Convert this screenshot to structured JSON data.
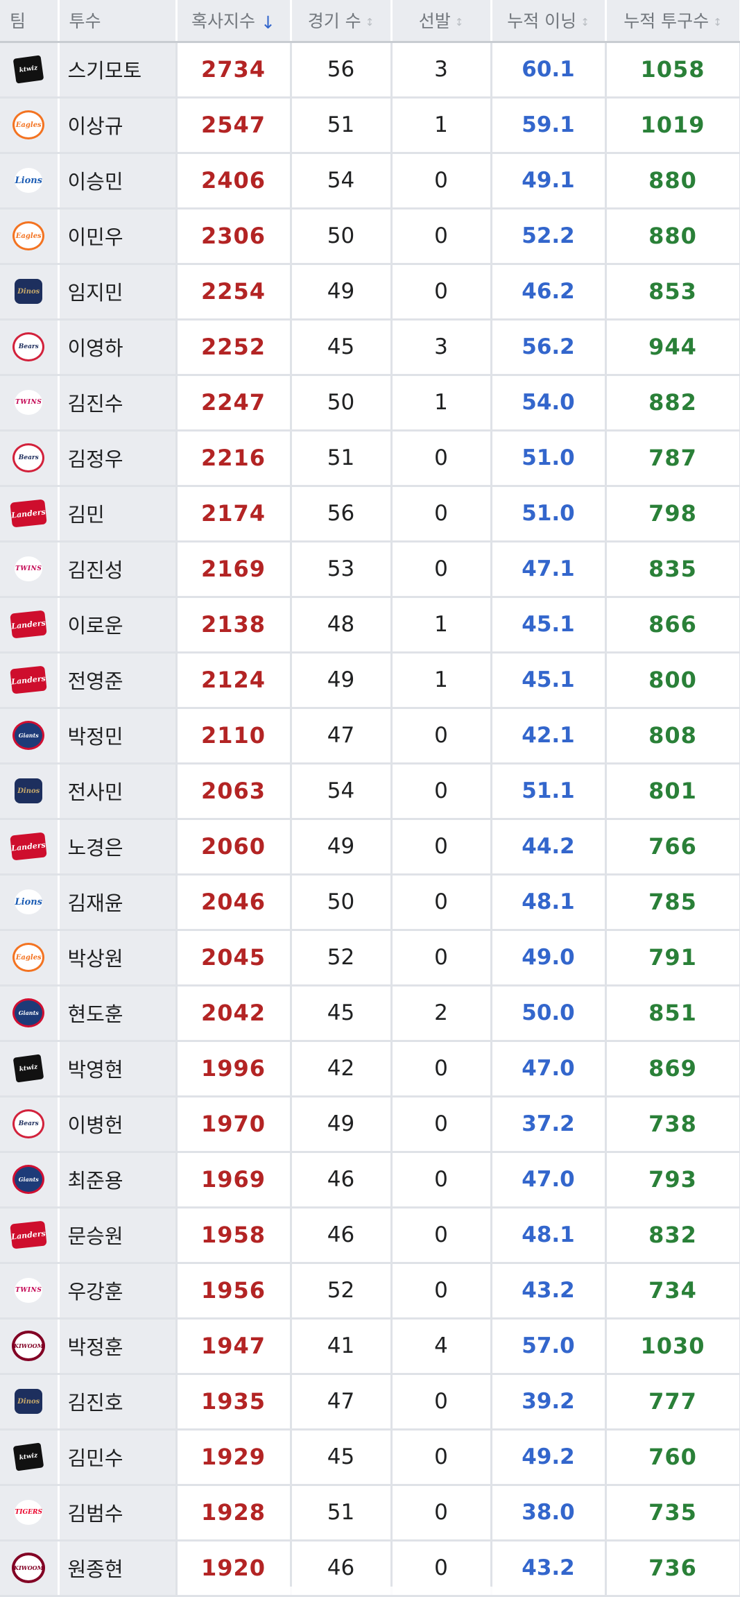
{
  "table": {
    "headers": {
      "team": "팀",
      "pitcher": "투수",
      "wear": "혹사지수",
      "games": "경기 수",
      "starts": "선발",
      "innings": "누적 이닝",
      "pitches": "누적 투구수"
    },
    "sort_icons": {
      "active": "↓",
      "inactive": "↕"
    },
    "rows": [
      {
        "team_logo": "kt-wiz-logo",
        "logo_text": "ktwiz",
        "pitcher": "스기모토",
        "wear": "2734",
        "games": "56",
        "starts": "3",
        "innings": "60.1",
        "pitches": "1058"
      },
      {
        "team_logo": "eagles-logo",
        "logo_text": "Eagles",
        "pitcher": "이상규",
        "wear": "2547",
        "games": "51",
        "starts": "1",
        "innings": "59.1",
        "pitches": "1019"
      },
      {
        "team_logo": "lions-logo",
        "logo_text": "Lions",
        "pitcher": "이승민",
        "wear": "2406",
        "games": "54",
        "starts": "0",
        "innings": "49.1",
        "pitches": "880"
      },
      {
        "team_logo": "eagles-logo",
        "logo_text": "Eagles",
        "pitcher": "이민우",
        "wear": "2306",
        "games": "50",
        "starts": "0",
        "innings": "52.2",
        "pitches": "880"
      },
      {
        "team_logo": "dinos-logo",
        "logo_text": "Dinos",
        "pitcher": "임지민",
        "wear": "2254",
        "games": "49",
        "starts": "0",
        "innings": "46.2",
        "pitches": "853"
      },
      {
        "team_logo": "bears-logo",
        "logo_text": "Bears",
        "pitcher": "이영하",
        "wear": "2252",
        "games": "45",
        "starts": "3",
        "innings": "56.2",
        "pitches": "944"
      },
      {
        "team_logo": "twins-logo",
        "logo_text": "TWINS",
        "pitcher": "김진수",
        "wear": "2247",
        "games": "50",
        "starts": "1",
        "innings": "54.0",
        "pitches": "882"
      },
      {
        "team_logo": "bears-logo",
        "logo_text": "Bears",
        "pitcher": "김정우",
        "wear": "2216",
        "games": "51",
        "starts": "0",
        "innings": "51.0",
        "pitches": "787"
      },
      {
        "team_logo": "landers-logo",
        "logo_text": "Landers",
        "pitcher": "김민",
        "wear": "2174",
        "games": "56",
        "starts": "0",
        "innings": "51.0",
        "pitches": "798"
      },
      {
        "team_logo": "twins-logo",
        "logo_text": "TWINS",
        "pitcher": "김진성",
        "wear": "2169",
        "games": "53",
        "starts": "0",
        "innings": "47.1",
        "pitches": "835"
      },
      {
        "team_logo": "landers-logo",
        "logo_text": "Landers",
        "pitcher": "이로운",
        "wear": "2138",
        "games": "48",
        "starts": "1",
        "innings": "45.1",
        "pitches": "866"
      },
      {
        "team_logo": "landers-logo",
        "logo_text": "Landers",
        "pitcher": "전영준",
        "wear": "2124",
        "games": "49",
        "starts": "1",
        "innings": "45.1",
        "pitches": "800"
      },
      {
        "team_logo": "giants-logo",
        "logo_text": "Giants",
        "pitcher": "박정민",
        "wear": "2110",
        "games": "47",
        "starts": "0",
        "innings": "42.1",
        "pitches": "808"
      },
      {
        "team_logo": "dinos-logo",
        "logo_text": "Dinos",
        "pitcher": "전사민",
        "wear": "2063",
        "games": "54",
        "starts": "0",
        "innings": "51.1",
        "pitches": "801"
      },
      {
        "team_logo": "landers-logo",
        "logo_text": "Landers",
        "pitcher": "노경은",
        "wear": "2060",
        "games": "49",
        "starts": "0",
        "innings": "44.2",
        "pitches": "766"
      },
      {
        "team_logo": "lions-logo",
        "logo_text": "Lions",
        "pitcher": "김재윤",
        "wear": "2046",
        "games": "50",
        "starts": "0",
        "innings": "48.1",
        "pitches": "785"
      },
      {
        "team_logo": "eagles-logo",
        "logo_text": "Eagles",
        "pitcher": "박상원",
        "wear": "2045",
        "games": "52",
        "starts": "0",
        "innings": "49.0",
        "pitches": "791"
      },
      {
        "team_logo": "giants-logo",
        "logo_text": "Giants",
        "pitcher": "현도훈",
        "wear": "2042",
        "games": "45",
        "starts": "2",
        "innings": "50.0",
        "pitches": "851"
      },
      {
        "team_logo": "kt-wiz-logo",
        "logo_text": "ktwiz",
        "pitcher": "박영현",
        "wear": "1996",
        "games": "42",
        "starts": "0",
        "innings": "47.0",
        "pitches": "869"
      },
      {
        "team_logo": "bears-logo",
        "logo_text": "Bears",
        "pitcher": "이병헌",
        "wear": "1970",
        "games": "49",
        "starts": "0",
        "innings": "37.2",
        "pitches": "738"
      },
      {
        "team_logo": "giants-logo",
        "logo_text": "Giants",
        "pitcher": "최준용",
        "wear": "1969",
        "games": "46",
        "starts": "0",
        "innings": "47.0",
        "pitches": "793"
      },
      {
        "team_logo": "landers-logo",
        "logo_text": "Landers",
        "pitcher": "문승원",
        "wear": "1958",
        "games": "46",
        "starts": "0",
        "innings": "48.1",
        "pitches": "832"
      },
      {
        "team_logo": "twins-logo",
        "logo_text": "TWINS",
        "pitcher": "우강훈",
        "wear": "1956",
        "games": "52",
        "starts": "0",
        "innings": "43.2",
        "pitches": "734"
      },
      {
        "team_logo": "kiwoom-logo",
        "logo_text": "KIWOOM",
        "pitcher": "박정훈",
        "wear": "1947",
        "games": "41",
        "starts": "4",
        "innings": "57.0",
        "pitches": "1030"
      },
      {
        "team_logo": "dinos-logo",
        "logo_text": "Dinos",
        "pitcher": "김진호",
        "wear": "1935",
        "games": "47",
        "starts": "0",
        "innings": "39.2",
        "pitches": "777"
      },
      {
        "team_logo": "kt-wiz-logo",
        "logo_text": "ktwiz",
        "pitcher": "김민수",
        "wear": "1929",
        "games": "45",
        "starts": "0",
        "innings": "49.2",
        "pitches": "760"
      },
      {
        "team_logo": "tigers-logo",
        "logo_text": "TIGERS",
        "pitcher": "김범수",
        "wear": "1928",
        "games": "51",
        "starts": "0",
        "innings": "38.0",
        "pitches": "735"
      },
      {
        "team_logo": "kiwoom-logo",
        "logo_text": "KIWOOM",
        "pitcher": "원종현",
        "wear": "1920",
        "games": "46",
        "starts": "0",
        "innings": "43.2",
        "pitches": "736"
      }
    ]
  },
  "colors": {
    "wear": "#b32424",
    "innings": "#3366cc",
    "pitches": "#2a8038",
    "header_bg": "#eaecf0"
  }
}
